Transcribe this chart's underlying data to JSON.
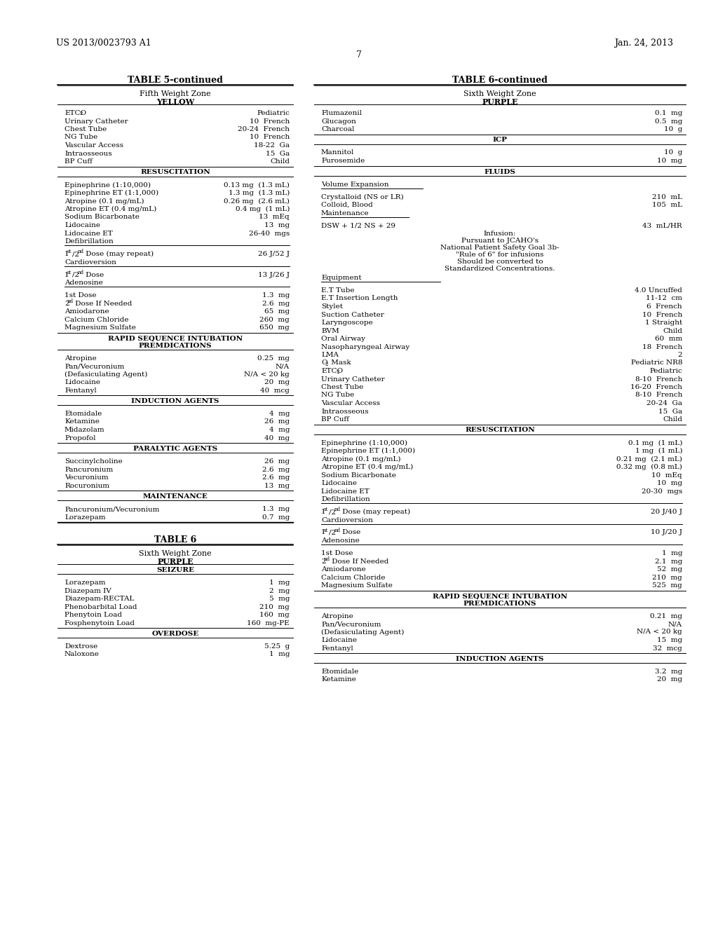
{
  "page_header_left": "US 2013/0023793 A1",
  "page_header_right": "Jan. 24, 2013",
  "page_number": "7",
  "background_color": "#ffffff"
}
